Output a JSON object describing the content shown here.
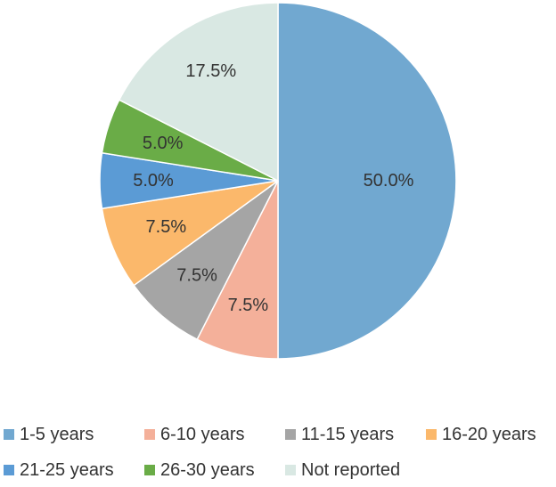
{
  "chart_data": {
    "type": "pie",
    "title": "",
    "slices": [
      {
        "label": "1-5 years",
        "value": 50.0,
        "display": "50.0%",
        "color": "#71a8d0"
      },
      {
        "label": "6-10 years",
        "value": 7.5,
        "display": "7.5%",
        "color": "#f4b09a"
      },
      {
        "label": "11-15 years",
        "value": 7.5,
        "display": "7.5%",
        "color": "#a5a5a5"
      },
      {
        "label": "16-20 years",
        "value": 7.5,
        "display": "7.5%",
        "color": "#fbb86b"
      },
      {
        "label": "21-25 years",
        "value": 5.0,
        "display": "5.0%",
        "color": "#5b9bd5"
      },
      {
        "label": "26-30 years",
        "value": 5.0,
        "display": "5.0%",
        "color": "#6aac47"
      },
      {
        "label": "Not reported",
        "value": 17.5,
        "display": "17.5%",
        "color": "#d9e8e3"
      }
    ],
    "legend_position": "bottom",
    "start_angle": "12 o'clock",
    "direction": "clockwise"
  }
}
